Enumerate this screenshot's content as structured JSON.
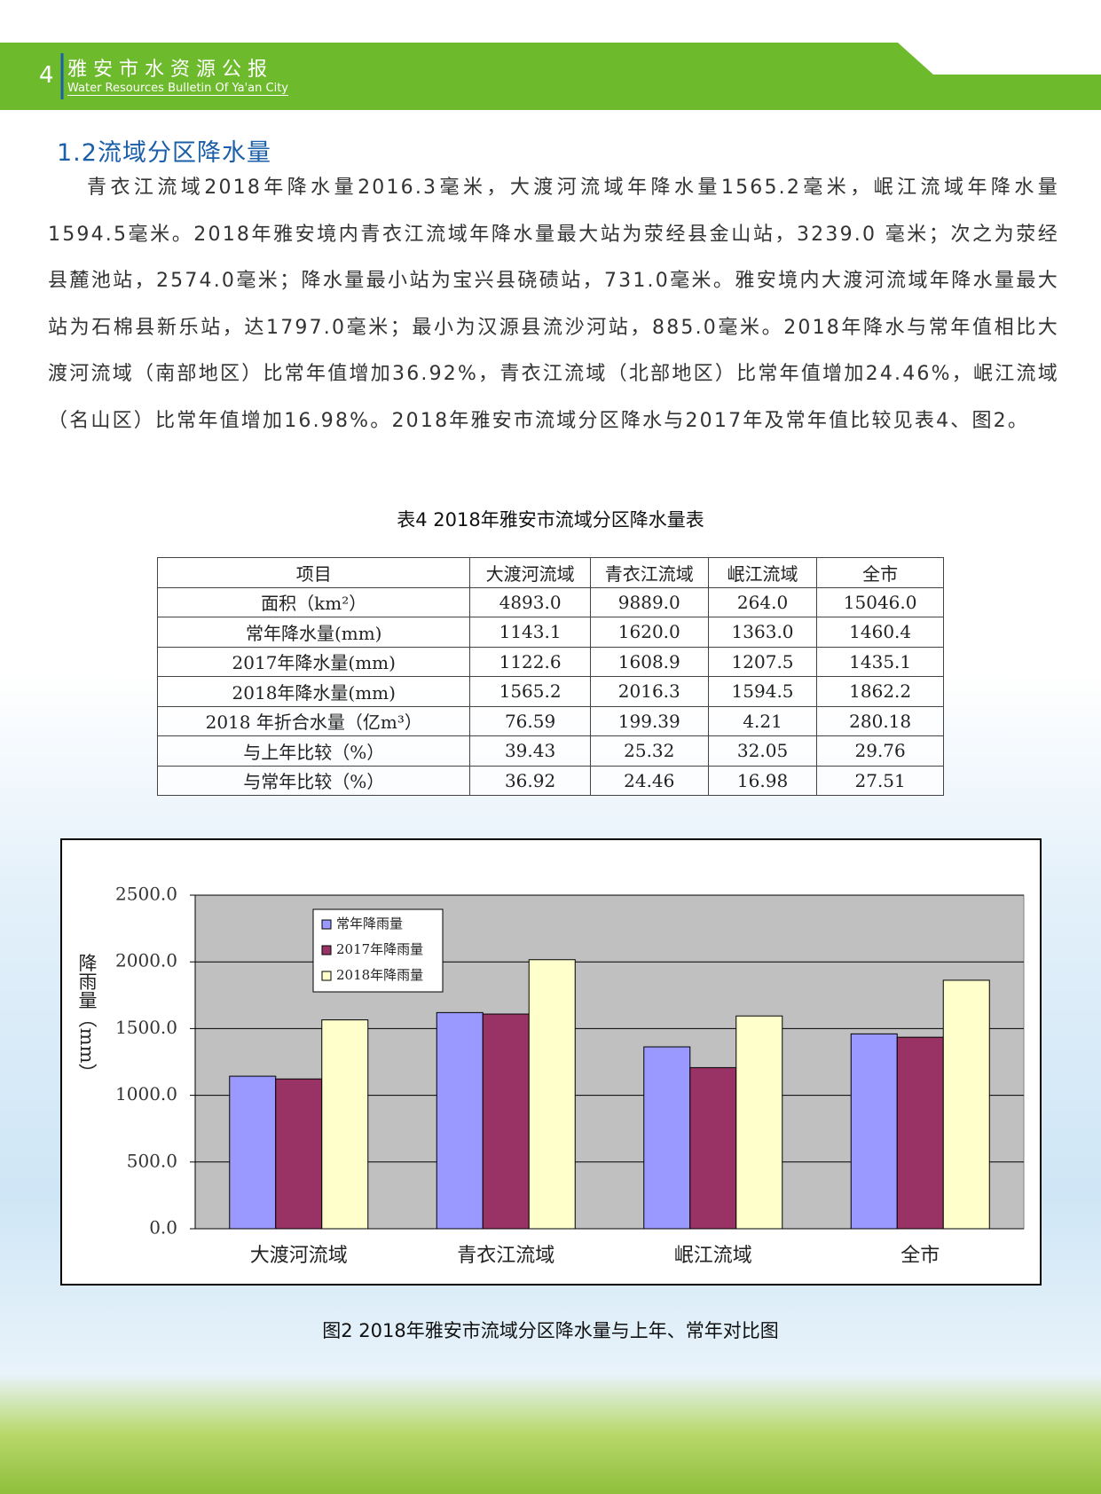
{
  "header": {
    "page_number": "4",
    "title": "雅安市水资源公报",
    "subtitle": "Water Resources Bulletin Of Ya'an City"
  },
  "section": {
    "heading": "1.2流域分区降水量",
    "paragraph": "青衣江流域2018年降水量2016.3毫米，大渡河流域年降水量1565.2毫米，岷江流域年降水量1594.5毫米。2018年雅安境内青衣江流域年降水量最大站为荥经县金山站，3239.0 毫米；次之为荥经县麓池站，2574.0毫米；降水量最小站为宝兴县硗碛站，731.0毫米。雅安境内大渡河流域年降水量最大站为石棉县新乐站，达1797.0毫米；最小为汉源县流沙河站，885.0毫米。2018年降水与常年值相比大渡河流域（南部地区）比常年值增加36.92%，青衣江流域（北部地区）比常年值增加24.46%，岷江流域（名山区）比常年值增加16.98%。2018年雅安市流域分区降水与2017年及常年值比较见表4、图2。"
  },
  "table": {
    "caption": "表4  2018年雅安市流域分区降水量表",
    "header": [
      "项目",
      "大渡河流域",
      "青衣江流域",
      "岷江流域",
      "全市"
    ],
    "rows": [
      [
        "面积（km²）",
        "4893.0",
        "9889.0",
        "264.0",
        "15046.0"
      ],
      [
        "常年降水量(mm)",
        "1143.1",
        "1620.0",
        "1363.0",
        "1460.4"
      ],
      [
        "2017年降水量(mm)",
        "1122.6",
        "1608.9",
        "1207.5",
        "1435.1"
      ],
      [
        "2018年降水量(mm)",
        "1565.2",
        "2016.3",
        "1594.5",
        "1862.2"
      ],
      [
        "2018 年折合水量（亿m³）",
        "76.59",
        "199.39",
        "4.21",
        "280.18"
      ],
      [
        "与上年比较（%）",
        "39.43",
        "25.32",
        "32.05",
        "29.76"
      ],
      [
        "与常年比较（%）",
        "36.92",
        "24.46",
        "16.98",
        "27.51"
      ]
    ]
  },
  "chart_data": {
    "type": "bar",
    "caption": "图2 2018年雅安市流域分区降水量与上年、常年对比图",
    "y_label": "降雨量（mm）",
    "categories": [
      "大渡河流域",
      "青衣江流域",
      "岷江流域",
      "全市"
    ],
    "series": [
      {
        "name": "常年降雨量",
        "color": "#9999ff",
        "values": [
          1143.1,
          1620.0,
          1363.0,
          1460.4
        ]
      },
      {
        "name": "2017年降雨量",
        "color": "#993366",
        "values": [
          1122.6,
          1608.9,
          1207.5,
          1435.1
        ]
      },
      {
        "name": "2018年降雨量",
        "color": "#ffffcc",
        "values": [
          1565.2,
          2016.3,
          1594.5,
          1862.2
        ]
      }
    ],
    "ylim": [
      0,
      2500
    ],
    "yticks": [
      {
        "value": 0,
        "label": "0.0"
      },
      {
        "value": 500,
        "label": "500.0"
      },
      {
        "value": 1000,
        "label": "1000.0"
      },
      {
        "value": 1500,
        "label": "1500.0"
      },
      {
        "value": 2000,
        "label": "2000.0"
      },
      {
        "value": 2500,
        "label": "2500.0"
      }
    ],
    "grid": true,
    "plot_background": "#c0c0c0",
    "legend": "upper left"
  }
}
